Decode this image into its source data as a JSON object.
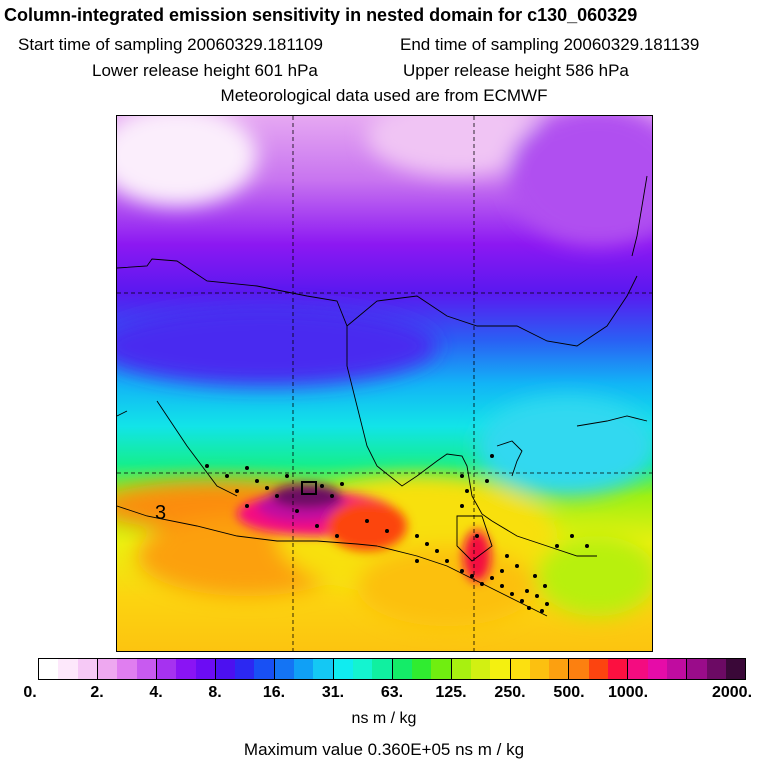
{
  "header": {
    "title": "Column-integrated emission sensitivity in nested domain for c130_060329",
    "start_label": "Start time of sampling 20060329.181109",
    "end_label": "End time of sampling 20060329.181139",
    "lower_label": "Lower release height  601 hPa",
    "upper_label": "Upper release height  586 hPa",
    "met_label": "Meteorological data used are from ECMWF"
  },
  "map": {
    "contour_label": "3"
  },
  "colorbar": {
    "colors": [
      "#ffffff",
      "#fde8fb",
      "#f6c9f6",
      "#eea8f0",
      "#e07ef0",
      "#c85af0",
      "#a632f0",
      "#8a14f4",
      "#6c0cf4",
      "#4c10f0",
      "#2c28f2",
      "#1850f4",
      "#1474f4",
      "#10a0f6",
      "#14c8f4",
      "#10ecf0",
      "#14f4d0",
      "#10f0a0",
      "#14ec68",
      "#30ec30",
      "#70ee10",
      "#a8f010",
      "#d2f012",
      "#f4f010",
      "#fce010",
      "#fcc010",
      "#fca010",
      "#fc8010",
      "#fc4410",
      "#fc1040",
      "#f40c80",
      "#e60ca8",
      "#c00ca0",
      "#9a0c8a",
      "#6c0a64",
      "#3a0838"
    ],
    "ticks": [
      "0.",
      "2.",
      "4.",
      "8.",
      "16.",
      "31.",
      "63.",
      "125.",
      "250.",
      "500.",
      "1000.",
      "2000."
    ],
    "unit": "ns m / kg"
  },
  "footer": {
    "max_label": "Maximum value  0.360E+05 ns m / kg"
  }
}
